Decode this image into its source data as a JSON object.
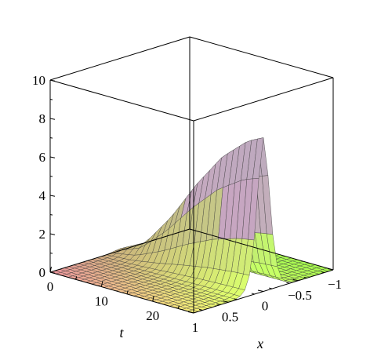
{
  "chart_data": {
    "type": "surface3d",
    "title": "",
    "axes": {
      "x": {
        "label": "x",
        "range": [
          -1,
          1
        ],
        "ticks": [
          1,
          0.5,
          0,
          -0.5,
          -1
        ],
        "tick_labels": [
          "1",
          "0.5",
          "0",
          "−0.5",
          "−1"
        ]
      },
      "t": {
        "label": "t",
        "range": [
          0,
          28
        ],
        "ticks": [
          0,
          10,
          20
        ],
        "tick_labels": [
          "0",
          "10",
          "20"
        ]
      },
      "z": {
        "label": "",
        "range": [
          0,
          10
        ],
        "ticks": [
          0,
          2,
          4,
          6,
          8,
          10
        ],
        "tick_labels": [
          "0",
          "2",
          "4",
          "6",
          "8",
          "10"
        ]
      }
    },
    "surface": {
      "description": "solitary ridge along x = 0, peak height grows with t",
      "peak_values": [
        {
          "t": 0,
          "z": 0.1
        },
        {
          "t": 5,
          "z": 0.8
        },
        {
          "t": 10,
          "z": 2.5
        },
        {
          "t": 15,
          "z": 4.6
        },
        {
          "t": 20,
          "z": 6.4
        },
        {
          "t": 25,
          "z": 7.6
        },
        {
          "t": 28,
          "z": 8.0
        }
      ],
      "width_in_x": 0.12,
      "grid_x": 30,
      "grid_t": 24
    },
    "box": true,
    "grid": false,
    "legend": "none"
  }
}
